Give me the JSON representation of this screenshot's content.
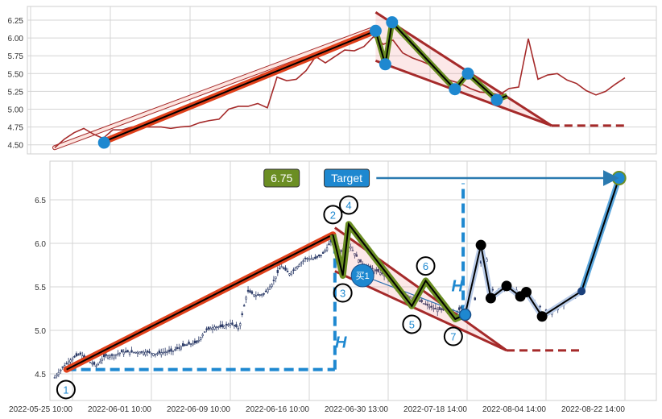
{
  "chart_data": [
    {
      "type": "line",
      "panel": "top",
      "yticks": [
        "4.50",
        "4.75",
        "5.00",
        "5.25",
        "5.50",
        "5.75",
        "6.00",
        "6.25"
      ],
      "ylim": [
        4.4,
        6.45
      ],
      "grid": true,
      "close": [
        4.46,
        4.58,
        4.67,
        4.73,
        4.65,
        4.59,
        4.71,
        4.71,
        4.75,
        4.75,
        4.75,
        4.75,
        4.73,
        4.75,
        4.76,
        4.81,
        4.84,
        4.86,
        5.0,
        5.04,
        5.04,
        5.08,
        5.02,
        5.45,
        5.4,
        5.42,
        5.54,
        5.74,
        5.65,
        5.74,
        5.83,
        5.82,
        5.88,
        6.02,
        5.91,
        5.97,
        5.79,
        5.72,
        5.67,
        5.61,
        5.46,
        5.4,
        5.36,
        5.29,
        5.24,
        5.23,
        5.2,
        5.29,
        5.31,
        5.99,
        5.42,
        5.48,
        5.5,
        5.41,
        5.36,
        5.26,
        5.2,
        5.25,
        5.35,
        5.44
      ],
      "channel_upper": [
        [
          0,
          4.46
        ],
        [
          33.2,
          6.14
        ]
      ],
      "trend_leg": [
        [
          5,
          4.54
        ],
        [
          33.2,
          6.1
        ]
      ],
      "pivots": [
        [
          5.1,
          4.53
        ],
        [
          33.2,
          6.1
        ],
        [
          34.2,
          5.63
        ],
        [
          34.9,
          6.22
        ],
        [
          41.4,
          5.28
        ],
        [
          42.75,
          5.5
        ],
        [
          45.75,
          5.13
        ]
      ],
      "zigzag": [
        [
          33.2,
          6.1
        ],
        [
          34.2,
          5.63
        ],
        [
          34.9,
          6.22
        ],
        [
          41.4,
          5.28
        ],
        [
          42.75,
          5.5
        ],
        [
          45.75,
          5.13
        ],
        [
          46.8,
          5.19
        ]
      ],
      "wedge_upper": [
        [
          33.2,
          6.36
        ],
        [
          51.4,
          4.77
        ]
      ],
      "wedge_lower": [
        [
          33.2,
          5.68
        ],
        [
          51.4,
          4.77
        ]
      ],
      "apex_dashed": [
        [
          51.4,
          4.77
        ],
        [
          59.3,
          4.77
        ]
      ],
      "colors": {
        "price": "#a52a2a",
        "trend": "#e0401a",
        "zigzag": "#6b8e23",
        "pivot": "#1e88d0",
        "wedge": "#a52a2a"
      }
    },
    {
      "type": "candlestick",
      "panel": "bottom",
      "xticks": [
        {
          "bar": 0,
          "label": "2022-05-25 10:00"
        },
        {
          "bar": 40,
          "label": "2022-06-01 10:00"
        },
        {
          "bar": 80,
          "label": "2022-06-09 10:00"
        },
        {
          "bar": 120,
          "label": "2022-06-16 10:00"
        },
        {
          "bar": 160,
          "label": "2022-06-30 13:00"
        },
        {
          "bar": 200,
          "label": "2022-07-18 14:00"
        },
        {
          "bar": 240,
          "label": "2022-08-04 14:00"
        },
        {
          "bar": 280,
          "label": "2022-08-22 14:00"
        }
      ],
      "yticks": [
        "4.5",
        "5.0",
        "5.5",
        "6.0",
        "6.5"
      ],
      "ylim": [
        4.2,
        6.95
      ],
      "grid": true,
      "trend_leg": [
        [
          -3,
          4.55
        ],
        [
          132,
          6.1
        ]
      ],
      "zigzag": [
        [
          132,
          6.1
        ],
        [
          137,
          5.63
        ],
        [
          140,
          6.22
        ],
        [
          172,
          5.28
        ],
        [
          179,
          5.57
        ],
        [
          194,
          5.13
        ],
        [
          199,
          5.18
        ]
      ],
      "wedge_upper": [
        [
          133,
          6.18
        ],
        [
          220,
          4.77
        ]
      ],
      "wedge_lower": [
        [
          133,
          5.68
        ],
        [
          220,
          4.77
        ]
      ],
      "apex_dashed": [
        [
          220,
          4.77
        ],
        [
          257,
          4.77
        ]
      ],
      "projection": [
        [
          199,
          5.18
        ],
        [
          207,
          5.98
        ],
        [
          212,
          5.37
        ],
        [
          220,
          5.51
        ],
        [
          227,
          5.39
        ],
        [
          230,
          5.44
        ],
        [
          238,
          5.16
        ],
        [
          258,
          5.45
        ],
        [
          277,
          6.75
        ]
      ],
      "height_lines": {
        "h1_horizontal": [
          [
            -3,
            4.55
          ],
          [
            133,
            4.55
          ]
        ],
        "h1_vertical": [
          [
            133,
            4.55
          ],
          [
            133,
            6.05
          ]
        ],
        "h2_vertical": [
          [
            198,
            5.18
          ],
          [
            198,
            6.69
          ]
        ],
        "label": "H",
        "label1_at": [
          136,
          4.8
        ],
        "label2_at": [
          195,
          5.45
        ]
      },
      "target_arrow": [
        [
          154,
          6.75
        ],
        [
          275,
          6.75
        ]
      ],
      "target_value": "6.75",
      "target_label": "Target",
      "target_value_at": [
        106,
        6.75
      ],
      "target_label_at": [
        139,
        6.75
      ],
      "buy_signal": {
        "label": "买1",
        "at": [
          147,
          5.63
        ],
        "line_to": [
          199,
          5.18
        ]
      },
      "point_labels": [
        {
          "label": "1",
          "at": [
            -3.3,
            4.32
          ]
        },
        {
          "label": "2",
          "at": [
            132,
            6.33
          ]
        },
        {
          "label": "3",
          "at": [
            137,
            5.43
          ]
        },
        {
          "label": "4",
          "at": [
            140,
            6.44
          ]
        },
        {
          "label": "5",
          "at": [
            172,
            5.07
          ]
        },
        {
          "label": "6",
          "at": [
            179,
            5.74
          ]
        },
        {
          "label": "7",
          "at": [
            193,
            4.93
          ]
        }
      ],
      "colors": {
        "trend": "#e0401a",
        "zigzag": "#6b8e23",
        "wedge": "#a52a2a",
        "height": "#1e88d0",
        "arrow": "#2a7ab0",
        "target_value_bg": "#6b8e23",
        "target_label_bg": "#1e88d0",
        "candle": "#2b3a67"
      }
    }
  ]
}
